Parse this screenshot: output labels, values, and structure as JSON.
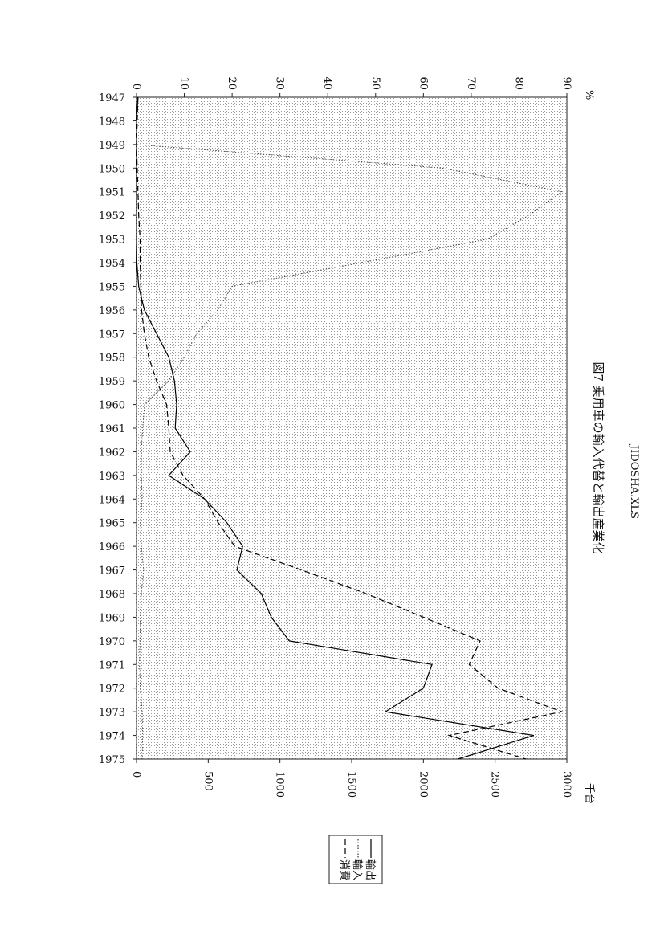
{
  "chart_data": {
    "type": "line",
    "title": "図7 乗用車の輸入代替と輸出産業化",
    "file_name": "JIDOSHA.XLS",
    "y_unit": "千台",
    "y2_unit": "%",
    "categories": [
      "1947",
      "1948",
      "1949",
      "1950",
      "1951",
      "1952",
      "1953",
      "1954",
      "1955",
      "1956",
      "1957",
      "1958",
      "1959",
      "1960",
      "1961",
      "1962",
      "1963",
      "1964",
      "1965",
      "1966",
      "1967",
      "1968",
      "1969",
      "1970",
      "1971",
      "1972",
      "1973",
      "1974",
      "1975"
    ],
    "ylim": [
      0,
      3000
    ],
    "yticks": [
      0,
      500,
      1000,
      1500,
      2000,
      2500,
      3000
    ],
    "y2lim": [
      0,
      90
    ],
    "y2ticks": [
      0,
      10,
      20,
      30,
      40,
      50,
      60,
      70,
      80,
      90
    ],
    "grid": false,
    "series": [
      {
        "name": "輸出",
        "color": "#000000",
        "dash": "solid",
        "values": [
          10,
          0,
          0,
          0,
          0,
          0,
          0,
          2,
          15,
          55,
          140,
          225,
          265,
          280,
          270,
          375,
          225,
          475,
          630,
          740,
          700,
          870,
          940,
          1065,
          2060,
          2000,
          1735,
          2770,
          2240
        ]
      },
      {
        "name": "輸入",
        "color": "#333333",
        "dash": "dotted",
        "axis": "y2",
        "values": [
          0.3,
          0,
          0,
          64,
          89,
          82,
          73.5,
          47,
          20,
          17,
          12.6,
          10,
          6.7,
          1.7,
          1.3,
          1.0,
          1.0,
          1.2,
          0.8,
          1.0,
          1.5,
          1.0,
          0.8,
          0.7,
          0.6,
          0.8,
          1.2,
          1.3,
          1.2
        ]
      },
      {
        "name": "消費",
        "color": "#000000",
        "dash": "dashed",
        "values": [
          10,
          5,
          0,
          5,
          10,
          15,
          25,
          25,
          30,
          35,
          55,
          85,
          140,
          210,
          225,
          235,
          325,
          475,
          570,
          685,
          1150,
          1600,
          2000,
          2395,
          2320,
          2520,
          2965,
          2180,
          2715
        ]
      }
    ]
  }
}
